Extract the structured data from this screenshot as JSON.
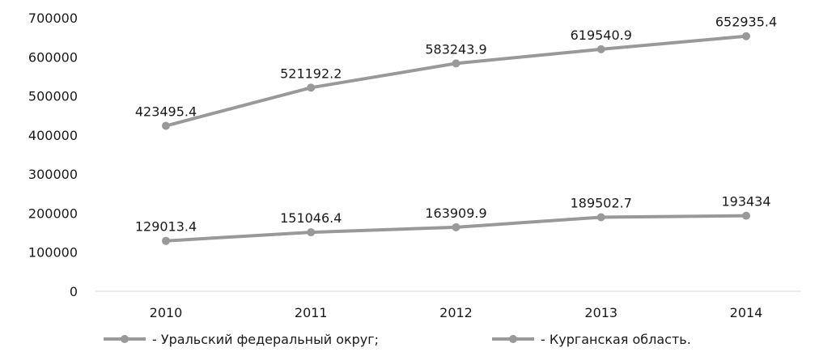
{
  "chart_data": {
    "type": "line",
    "title": "",
    "xlabel": "",
    "ylabel": "",
    "categories": [
      "2010",
      "2011",
      "2012",
      "2013",
      "2014"
    ],
    "ylim": [
      0,
      700000
    ],
    "yticks": [
      0,
      100000,
      200000,
      300000,
      400000,
      500000,
      600000,
      700000
    ],
    "ytick_labels": [
      "0",
      "100000",
      "200000",
      "300000",
      "400000",
      "500000",
      "600000",
      "700000"
    ],
    "grid": false,
    "legend_position": "bottom",
    "series": [
      {
        "name": "- Уральский федеральный округ;",
        "values": [
          423495.4,
          521192.2,
          583243.9,
          619540.9,
          652935.4
        ],
        "labels": [
          "423495.4",
          "521192.2",
          "583243.9",
          "619540.9",
          "652935.4"
        ],
        "color": "#999999"
      },
      {
        "name": "- Курганская область.",
        "values": [
          129013.4,
          151046.4,
          163909.9,
          189502.7,
          193434
        ],
        "labels": [
          "129013.4",
          "151046.4",
          "163909.9",
          "189502.7",
          "193434"
        ],
        "color": "#999999"
      }
    ],
    "axis_color": "#d9d9d9"
  }
}
